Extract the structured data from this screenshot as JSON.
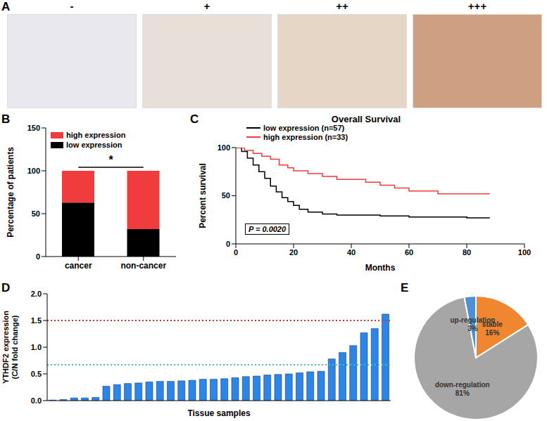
{
  "chart_data": [
    {
      "panel": "A",
      "type": "image",
      "labels": [
        "-",
        "+",
        "++",
        "+++"
      ],
      "colors": [
        "#e9e8ee",
        "#e8dfd8",
        "#e5d6c6",
        "#cf9f82"
      ]
    },
    {
      "panel": "B",
      "type": "bar",
      "stacked": true,
      "categories": [
        "cancer",
        "non-cancer"
      ],
      "series": [
        {
          "name": "low expression",
          "color": "#000000",
          "values": [
            63,
            32
          ]
        },
        {
          "name": "high expression",
          "color": "#f03c3c",
          "values": [
            37,
            68
          ]
        }
      ],
      "y_label": "Percentage of patients",
      "ylim": [
        0,
        150
      ],
      "yticks": [
        0,
        50,
        100,
        150
      ],
      "legend": "upper left",
      "annotations": [
        "*"
      ]
    },
    {
      "panel": "C",
      "type": "line",
      "title": "Overall Survival",
      "x_label": "Months",
      "y_label": "Percent survival",
      "xlim": [
        0,
        100
      ],
      "xticks": [
        0,
        20,
        40,
        60,
        80,
        100
      ],
      "ylim": [
        0,
        100
      ],
      "yticks": [
        0,
        50,
        100
      ],
      "line_style": "step",
      "legend": "upper left",
      "annotations": [
        "P = 0.0020"
      ],
      "series": [
        {
          "name": "low expression (n=57)",
          "color": "#000000",
          "x": [
            0,
            2,
            4,
            6,
            8,
            10,
            12,
            14,
            16,
            18,
            20,
            22,
            25,
            30,
            35,
            40,
            50,
            60,
            70,
            80,
            88
          ],
          "values": [
            100,
            96,
            89,
            82,
            75,
            68,
            60,
            54,
            48,
            44,
            40,
            36,
            33,
            31,
            30,
            30,
            29,
            28,
            28,
            27,
            27
          ]
        },
        {
          "name": "high expression (n=33)",
          "color": "#f03c3c",
          "x": [
            0,
            3,
            6,
            9,
            12,
            15,
            18,
            20,
            25,
            30,
            35,
            40,
            45,
            50,
            55,
            60,
            70,
            80,
            88
          ],
          "values": [
            100,
            97,
            94,
            91,
            88,
            82,
            79,
            76,
            73,
            70,
            67,
            67,
            64,
            61,
            58,
            55,
            52,
            52,
            52
          ]
        }
      ]
    },
    {
      "panel": "D",
      "type": "bar",
      "categories": [
        null,
        null,
        null,
        null,
        null,
        null,
        null,
        null,
        null,
        null,
        null,
        null,
        null,
        null,
        null,
        null,
        null,
        null,
        null,
        null,
        null,
        null,
        null,
        null,
        null,
        null,
        null,
        null,
        null,
        null,
        null,
        null
      ],
      "values": [
        0.01,
        0.02,
        0.05,
        0.05,
        0.06,
        0.27,
        0.3,
        0.32,
        0.33,
        0.35,
        0.36,
        0.36,
        0.37,
        0.38,
        0.4,
        0.4,
        0.41,
        0.43,
        0.45,
        0.46,
        0.48,
        0.49,
        0.5,
        0.52,
        0.54,
        0.55,
        0.78,
        0.9,
        1.03,
        1.27,
        1.35,
        1.62
      ],
      "color": "#2b86e8",
      "y_label": [
        "YTHDF2 expression",
        "(C/N fold change)"
      ],
      "x_label": "Tissue samples",
      "ylim": [
        0,
        2
      ],
      "yticks": [
        {
          "value": 0,
          "label": "0.0"
        },
        {
          "value": 0.5,
          "label": "0.5"
        },
        {
          "value": 1,
          "label": "1.0"
        },
        {
          "value": 1.5,
          "label": "1.5"
        },
        {
          "value": 2,
          "label": "2.0"
        }
      ],
      "tick_labels": "y",
      "reference_lines": [
        {
          "value": 1.5,
          "color": "#c0392b"
        },
        {
          "value": 0.67,
          "color": "#3cc9a0"
        }
      ]
    },
    {
      "panel": "E",
      "type": "pie",
      "categories": [
        "stable",
        "down-regulation",
        "up-regulation"
      ],
      "values": [
        16,
        81,
        3
      ],
      "value_labels": [
        "16%",
        "81%",
        "3%"
      ],
      "colors": [
        "#f0862f",
        "#a6a6a6",
        "#4f8fd6"
      ]
    }
  ]
}
